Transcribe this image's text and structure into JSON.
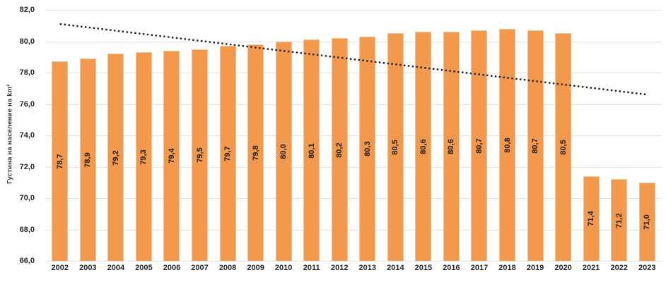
{
  "chart_data": {
    "type": "bar",
    "title": "",
    "ylabel": "Густина на население на km²",
    "xlabel": "",
    "ylim": [
      66.0,
      82.0
    ],
    "grid": true,
    "legend": false,
    "categories": [
      "2002",
      "2003",
      "2004",
      "2005",
      "2006",
      "2007",
      "2008",
      "2009",
      "2010",
      "2011",
      "2012",
      "2013",
      "2014",
      "2015",
      "2016",
      "2017",
      "2018",
      "2019",
      "2020",
      "2021",
      "2022",
      "2023"
    ],
    "values": [
      78.7,
      78.9,
      79.2,
      79.3,
      79.4,
      79.5,
      79.7,
      79.8,
      80.0,
      80.1,
      80.2,
      80.3,
      80.5,
      80.6,
      80.6,
      80.7,
      80.8,
      80.7,
      80.5,
      71.4,
      71.2,
      71.0
    ],
    "value_labels": [
      "78,7",
      "78,9",
      "79,2",
      "79,3",
      "79,4",
      "79,5",
      "79,7",
      "79,8",
      "80,0",
      "80,1",
      "80,2",
      "80,3",
      "80,5",
      "80,6",
      "80,6",
      "80,7",
      "80,8",
      "80,7",
      "80,5",
      "71,4",
      "71,2",
      "71,0"
    ],
    "yticks": [
      {
        "value": 66.0,
        "label": "66,0"
      },
      {
        "value": 68.0,
        "label": "68,0"
      },
      {
        "value": 70.0,
        "label": "70,0"
      },
      {
        "value": 72.0,
        "label": "72,0"
      },
      {
        "value": 74.0,
        "label": "74,0"
      },
      {
        "value": 76.0,
        "label": "76,0"
      },
      {
        "value": 78.0,
        "label": "78,0"
      },
      {
        "value": 80.0,
        "label": "80,0"
      },
      {
        "value": 82.0,
        "label": "82,0"
      }
    ],
    "trendline": {
      "type": "linear",
      "start_value": 81.1,
      "end_value": 76.6,
      "style": "dotted",
      "color": "#262626"
    },
    "colors": {
      "bar": "#f2994d",
      "bar_edge": "#f7c491",
      "gridline": "#e2e2e2",
      "text": "#262626"
    }
  }
}
